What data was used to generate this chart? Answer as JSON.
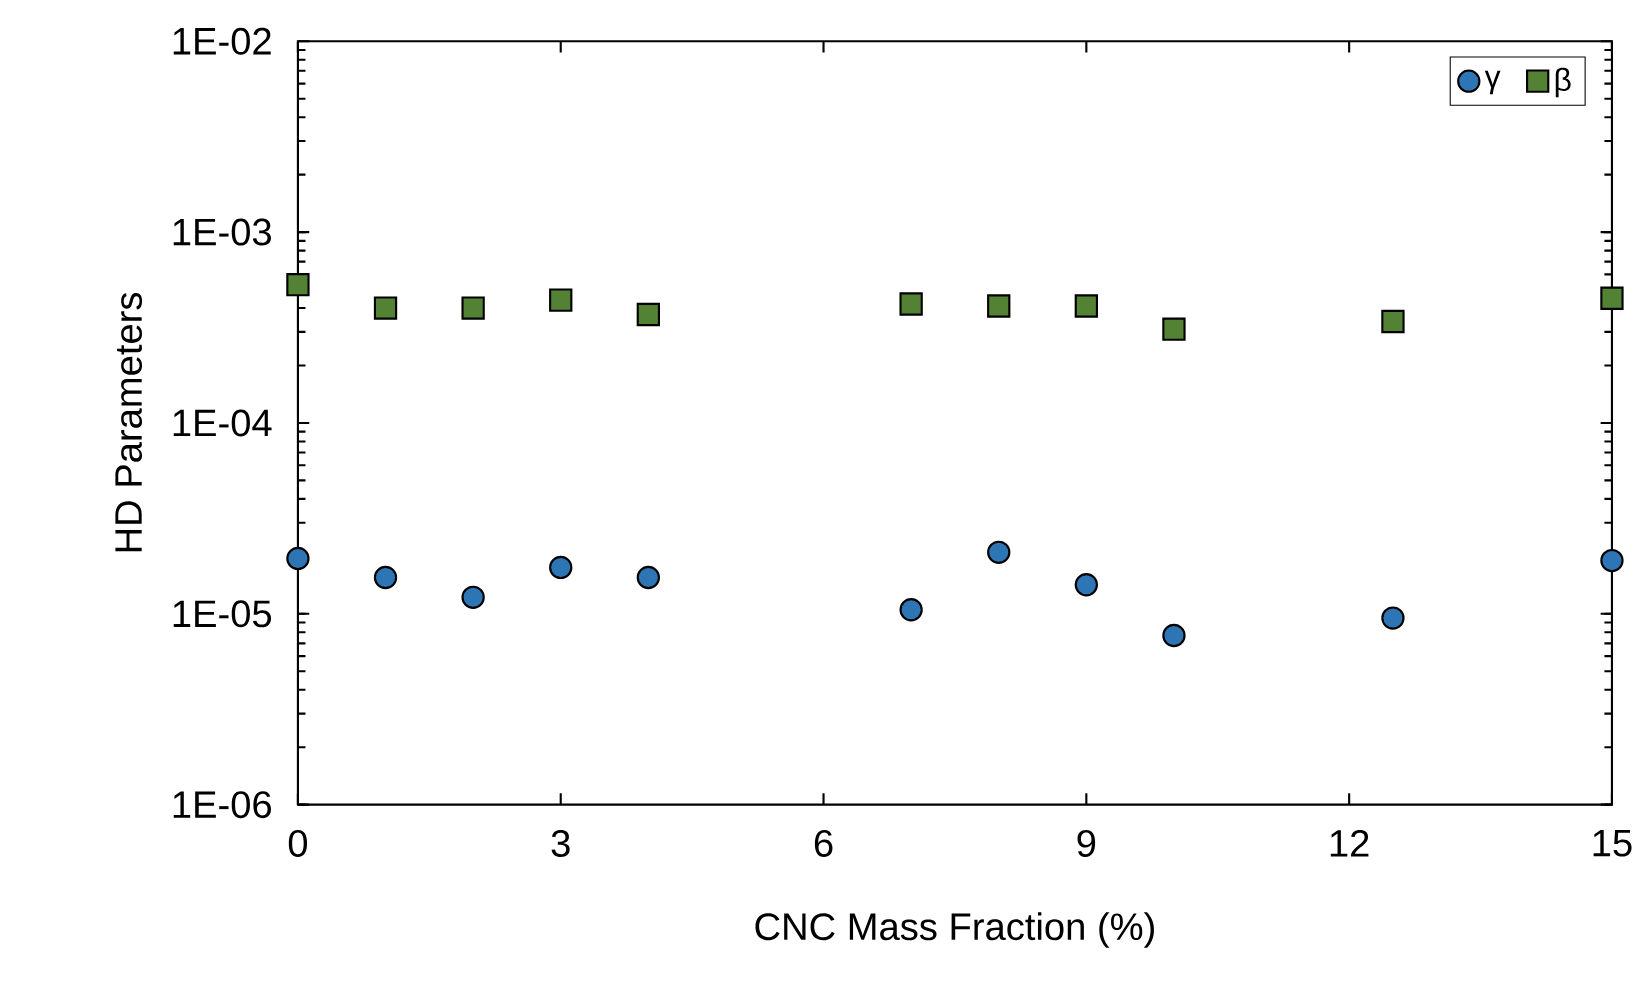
{
  "chart_data": {
    "type": "scatter",
    "xlabel": "CNC Mass Fraction (%)",
    "ylabel": "HD Parameters",
    "log": "y",
    "legend": "top right",
    "grid": false,
    "x": [
      0,
      1,
      2,
      3,
      4,
      7,
      8,
      9,
      10,
      12.5,
      15
    ],
    "xlim": [
      0,
      15
    ],
    "xticks": [
      0,
      3,
      6,
      9,
      12,
      15
    ],
    "ylim": [
      1e-06,
      0.01
    ],
    "yticks": [
      {
        "value": 1e-06,
        "label": "1E-06"
      },
      {
        "value": 1e-05,
        "label": "1E-05"
      },
      {
        "value": 0.0001,
        "label": "1E-04"
      },
      {
        "value": 0.001,
        "label": "1E-03"
      },
      {
        "value": 0.01,
        "label": "1E-02"
      }
    ],
    "series": [
      {
        "name": "γ",
        "color": "#2e75b6",
        "marker": "circle",
        "values": [
          1.95e-05,
          1.55e-05,
          1.22e-05,
          1.75e-05,
          1.55e-05,
          1.05e-05,
          2.1e-05,
          1.42e-05,
          7.7e-06,
          9.5e-06,
          1.9e-05
        ]
      },
      {
        "name": "β",
        "color": "#548235",
        "marker": "square",
        "values": [
          0.00053,
          0.0004,
          0.0004,
          0.00044,
          0.00037,
          0.00042,
          0.00041,
          0.00041,
          0.00031,
          0.00034,
          0.00045
        ]
      }
    ]
  }
}
